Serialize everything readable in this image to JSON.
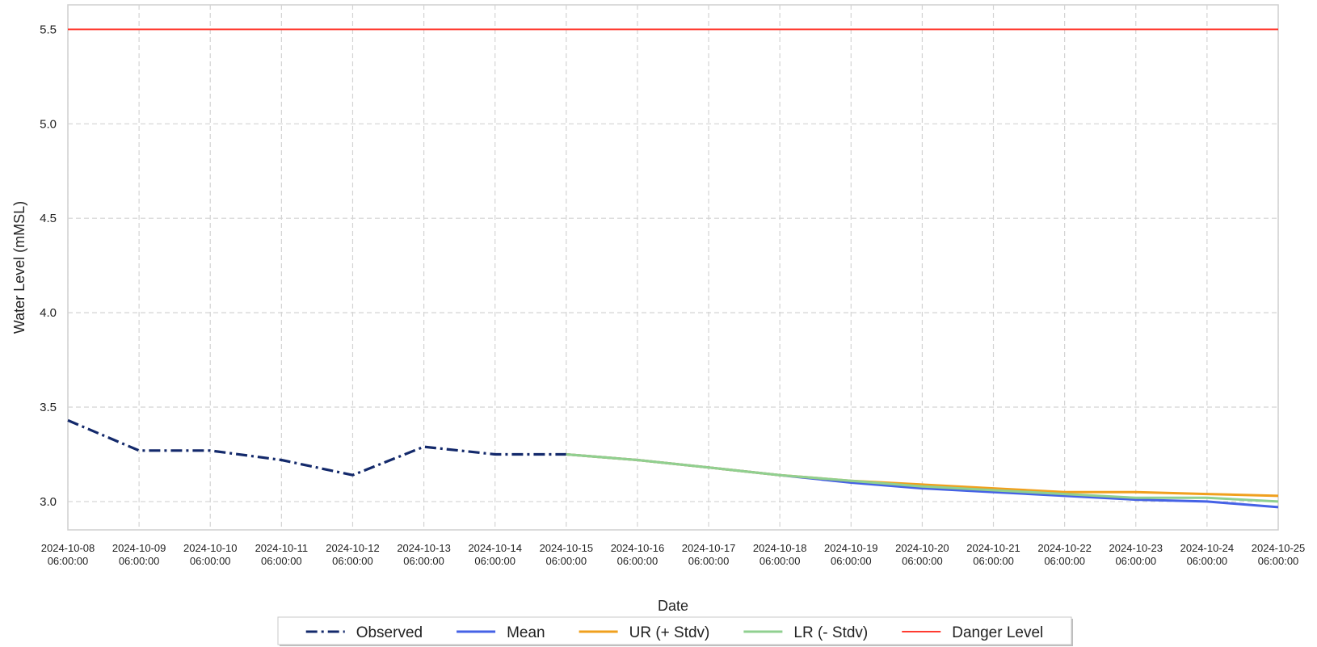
{
  "chart_data": {
    "type": "line",
    "title": "",
    "xlabel": "Date",
    "ylabel": "Water Level (mMSL)",
    "ylim": [
      2.85,
      5.63
    ],
    "yticks": [
      3.0,
      3.5,
      4.0,
      4.5,
      5.0,
      5.5
    ],
    "ytick_labels": [
      "3.0",
      "3.5",
      "4.0",
      "4.5",
      "5.0",
      "5.5"
    ],
    "x": [
      "2024-10-08 06:00:00",
      "2024-10-09 06:00:00",
      "2024-10-10 06:00:00",
      "2024-10-11 06:00:00",
      "2024-10-12 06:00:00",
      "2024-10-13 06:00:00",
      "2024-10-14 06:00:00",
      "2024-10-15 06:00:00",
      "2024-10-16 06:00:00",
      "2024-10-17 06:00:00",
      "2024-10-18 06:00:00",
      "2024-10-19 06:00:00",
      "2024-10-20 06:00:00",
      "2024-10-21 06:00:00",
      "2024-10-22 06:00:00",
      "2024-10-23 06:00:00",
      "2024-10-24 06:00:00",
      "2024-10-25 06:00:00"
    ],
    "x_tick_dates": [
      "2024-10-08",
      "2024-10-09",
      "2024-10-10",
      "2024-10-11",
      "2024-10-12",
      "2024-10-13",
      "2024-10-14",
      "2024-10-15",
      "2024-10-16",
      "2024-10-17",
      "2024-10-18",
      "2024-10-19",
      "2024-10-20",
      "2024-10-21",
      "2024-10-22",
      "2024-10-23",
      "2024-10-24",
      "2024-10-25"
    ],
    "x_tick_time": "06:00:00",
    "grid": true,
    "legend_position": "bottom-center",
    "series": [
      {
        "name": "Observed",
        "color": "#13296b",
        "style": "dashdot",
        "values": [
          3.43,
          3.27,
          3.27,
          3.22,
          3.14,
          3.29,
          3.25,
          3.25,
          null,
          null,
          null,
          null,
          null,
          null,
          null,
          null,
          null,
          null
        ]
      },
      {
        "name": "Mean",
        "color": "#4562e6",
        "style": "solid",
        "values": [
          null,
          null,
          null,
          null,
          null,
          null,
          null,
          3.25,
          3.22,
          3.18,
          3.14,
          3.1,
          3.07,
          3.05,
          3.03,
          3.01,
          3.0,
          2.97
        ]
      },
      {
        "name": "UR (+ Stdv)",
        "color": "#f0a01e",
        "style": "solid",
        "values": [
          null,
          null,
          null,
          null,
          null,
          null,
          null,
          3.25,
          3.22,
          3.18,
          3.14,
          3.11,
          3.09,
          3.07,
          3.05,
          3.05,
          3.04,
          3.03
        ]
      },
      {
        "name": "LR (- Stdv)",
        "color": "#90d090",
        "style": "solid",
        "values": [
          null,
          null,
          null,
          null,
          null,
          null,
          null,
          3.25,
          3.22,
          3.18,
          3.14,
          3.11,
          3.08,
          3.06,
          3.04,
          3.02,
          3.02,
          3.0
        ]
      },
      {
        "name": "Danger Level",
        "color": "#ff3b30",
        "style": "solid",
        "constant": 5.5
      }
    ]
  }
}
